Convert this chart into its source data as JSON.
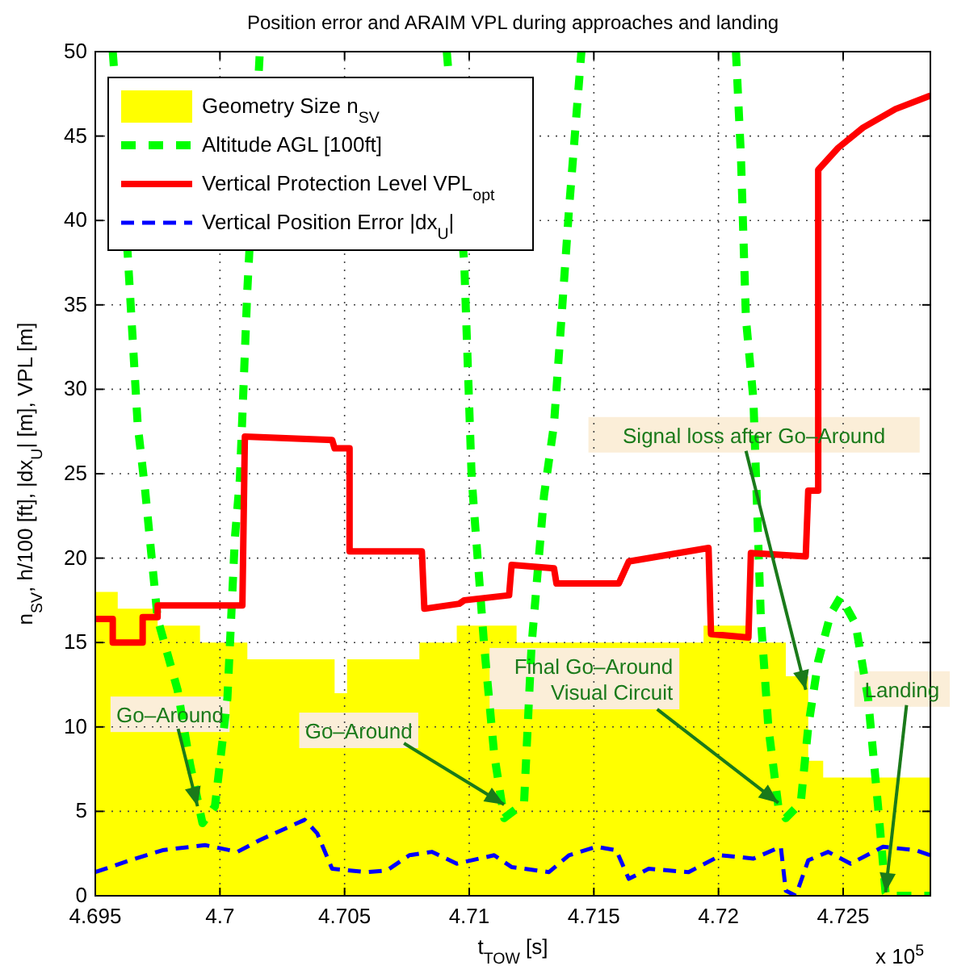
{
  "chart_data": {
    "type": "line",
    "title": "Position error and ARAIM VPL during approaches and landing",
    "xlabel": "t$_{TOW}$ [s]",
    "ylabel": "n$_{SV}$, h/100 [ft], |dx$_{U}$| [m], VPL [m]",
    "xlim": [
      4.695,
      4.7285
    ],
    "xticks": [
      4.695,
      4.7,
      4.705,
      4.71,
      4.715,
      4.72,
      4.725
    ],
    "ylim": [
      0,
      50
    ],
    "yticks": [
      0,
      5,
      10,
      15,
      20,
      25,
      30,
      35,
      40,
      45,
      50
    ],
    "grid": true,
    "legend": "top left",
    "series": [
      {
        "name": "Geometry Size n$_{SV}$",
        "type": "area",
        "color": "#ffff00",
        "x": [
          4.695,
          4.6959,
          4.6959,
          4.6975,
          4.6975,
          4.6992,
          4.6992,
          4.7011,
          4.7011,
          4.7046,
          4.7046,
          4.7051,
          4.7051,
          4.708,
          4.708,
          4.7095,
          4.7095,
          4.7119,
          4.7119,
          4.7194,
          4.7194,
          4.7213,
          4.7213,
          4.7227,
          4.7227,
          4.7236,
          4.7236,
          4.7242,
          4.7242,
          4.7285
        ],
        "values": [
          18,
          18,
          17,
          17,
          16,
          16,
          15,
          15,
          14,
          14,
          12,
          12,
          14,
          14,
          15,
          15,
          16,
          16,
          15,
          15,
          16,
          16,
          15,
          15,
          13,
          13,
          8,
          8,
          7,
          7
        ]
      },
      {
        "name": "Altitude AGL [100ft]",
        "line_style": "dashed",
        "color": "#00ff00",
        "x": [
          4.6957,
          4.6963,
          4.6967,
          4.697,
          4.6975,
          4.6983,
          4.6988,
          4.6993,
          4.6998,
          4.7003,
          4.7006,
          4.7008,
          4.7011,
          4.7016
        ],
        "values": [
          50,
          38,
          27.9,
          24,
          16.4,
          12.2,
          7.8,
          4.3,
          5.3,
          11.7,
          21.2,
          24.7,
          35.9,
          50
        ]
      },
      {
        "line_style": "dashed",
        "color": "#00ff00",
        "x": [
          4.7091,
          4.7098,
          4.7101,
          4.7106,
          4.711,
          4.7114,
          4.7122,
          4.7125,
          4.713,
          4.7134,
          4.7137,
          4.714,
          4.7145
        ],
        "values": [
          50,
          37.5,
          24.7,
          14.8,
          8.4,
          4.6,
          5.5,
          14.8,
          23.7,
          27.9,
          34.2,
          40.6,
          50
        ]
      },
      {
        "line_style": "dashed",
        "color": "#00ff00",
        "x": [
          4.7207,
          4.7209,
          4.7211,
          4.7214,
          4.7217,
          4.722,
          4.7224,
          4.7227,
          4.7233,
          4.7236,
          4.724,
          4.7245,
          4.7249,
          4.7255,
          4.726,
          4.7264,
          4.7267,
          4.7268,
          4.7285
        ],
        "values": [
          50,
          43.8,
          34.2,
          29.4,
          16.4,
          10,
          5.3,
          4.6,
          5.5,
          10,
          13.9,
          16.7,
          17.7,
          16.1,
          11.7,
          5.3,
          0.2,
          0,
          0
        ]
      },
      {
        "name": "Vertical Protection Level VPL$_{opt}$",
        "line_style": "solid",
        "color": "#ff0000",
        "x": [
          4.695,
          4.6957,
          4.6957,
          4.6969,
          4.6969,
          4.6975,
          4.6975,
          4.7009,
          4.701,
          4.7045,
          4.7046,
          4.7052,
          4.7052,
          4.7081,
          4.7082,
          4.7096,
          4.7098,
          4.7116,
          4.7117,
          4.7134,
          4.7135,
          4.716,
          4.7164,
          4.7196,
          4.7197,
          4.7212,
          4.7213,
          4.7235,
          4.7236,
          4.724,
          4.724,
          4.7248,
          4.7258,
          4.7271,
          4.7285
        ],
        "values": [
          16.4,
          16.4,
          15,
          15,
          16.5,
          16.5,
          17.2,
          17.2,
          27.2,
          27,
          26.5,
          26.5,
          20.4,
          20.4,
          17,
          17.3,
          17.5,
          17.8,
          19.6,
          19.4,
          18.5,
          18.5,
          19.8,
          20.6,
          15.5,
          15.3,
          20.3,
          20.1,
          24,
          24,
          43,
          44.3,
          45.5,
          46.6,
          47.4
        ]
      },
      {
        "name": "Vertical Position Error |dx$_{U}$|",
        "line_style": "dashed",
        "color": "#0000ff",
        "x": [
          4.695,
          4.6964,
          4.6977,
          4.6994,
          4.7007,
          4.7016,
          4.7034,
          4.7039,
          4.7045,
          4.7059,
          4.7067,
          4.7076,
          4.7085,
          4.7095,
          4.711,
          4.7117,
          4.7132,
          4.714,
          4.7151,
          4.7159,
          4.7164,
          4.7172,
          4.7188,
          4.7201,
          4.7214,
          4.7225,
          4.7227,
          4.7231,
          4.7236,
          4.7244,
          4.7253,
          4.7266,
          4.7279,
          4.7285
        ],
        "values": [
          1.4,
          2.1,
          2.7,
          3,
          2.6,
          3.3,
          4.5,
          3.7,
          1.6,
          1.4,
          1.5,
          2.4,
          2.6,
          1.9,
          2.4,
          1.7,
          1.4,
          2.4,
          2.9,
          2.7,
          1,
          1.6,
          1.4,
          2.4,
          2.2,
          2.9,
          0.3,
          0,
          2.1,
          2.6,
          1.9,
          2.9,
          2.7,
          2.4
        ]
      }
    ],
    "annotations": [
      {
        "text": "Go–Around",
        "x": 4.6991,
        "y": 5.3
      },
      {
        "text": "Go–Around",
        "x": 4.7114,
        "y": 5.4
      },
      {
        "text": "Final Go–Around\nVisual Circuit",
        "x": 4.7224,
        "y": 5.5
      },
      {
        "text": "Signal loss after Go–Around",
        "x": 4.7235,
        "y": 12.2
      },
      {
        "text": "Landing",
        "x": 4.7267,
        "y": 0.2
      },
      "x 10$^{5}$"
    ]
  }
}
